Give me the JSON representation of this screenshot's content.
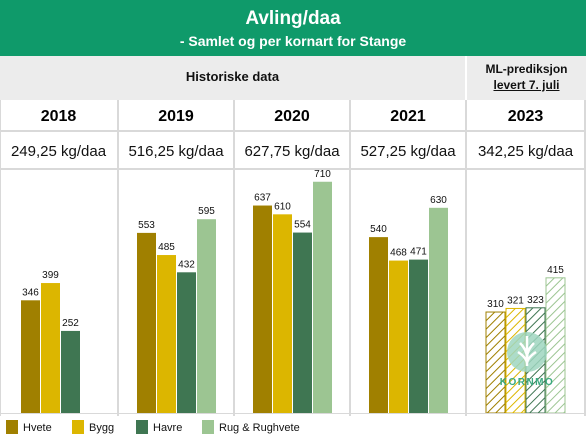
{
  "header": {
    "title": "Avling/daa",
    "subtitle": "- Samlet og per kornart for Stange"
  },
  "sections": {
    "historical": "Historiske data",
    "ml_line1": "ML-prediksjon",
    "ml_line2": "levert 7. juli"
  },
  "colors": {
    "Hvete": "#a08000",
    "Bygg": "#dcb600",
    "Havre": "#3f7652",
    "Rug & Rughvete": "#9cc592",
    "header": "#0f9a6a"
  },
  "years": [
    {
      "year": "2018",
      "total": "249,25 kg/daa"
    },
    {
      "year": "2019",
      "total": "516,25 kg/daa"
    },
    {
      "year": "2020",
      "total": "627,75 kg/daa"
    },
    {
      "year": "2021",
      "total": "527,25 kg/daa"
    },
    {
      "year": "2023",
      "total": "342,25 kg/daa"
    }
  ],
  "logo_text": "KORNMO",
  "legend": [
    {
      "name": "Hvete",
      "color": "#a08000"
    },
    {
      "name": "Bygg",
      "color": "#dcb600"
    },
    {
      "name": "Havre",
      "color": "#3f7652"
    },
    {
      "name": "Rug & Rughvete",
      "color": "#9cc592"
    }
  ],
  "chart_data": {
    "type": "bar",
    "categories": [
      "2018",
      "2019",
      "2020",
      "2021",
      "2023"
    ],
    "series": [
      {
        "name": "Hvete",
        "values": [
          346,
          553,
          637,
          540,
          310
        ]
      },
      {
        "name": "Bygg",
        "values": [
          399,
          485,
          610,
          468,
          321
        ]
      },
      {
        "name": "Havre",
        "values": [
          252,
          432,
          554,
          471,
          323
        ]
      },
      {
        "name": "Rug & Rughvete",
        "values": [
          null,
          595,
          710,
          630,
          415
        ]
      }
    ],
    "predicted_category": "2023",
    "ylim": [
      0,
      800
    ],
    "grid": false
  }
}
